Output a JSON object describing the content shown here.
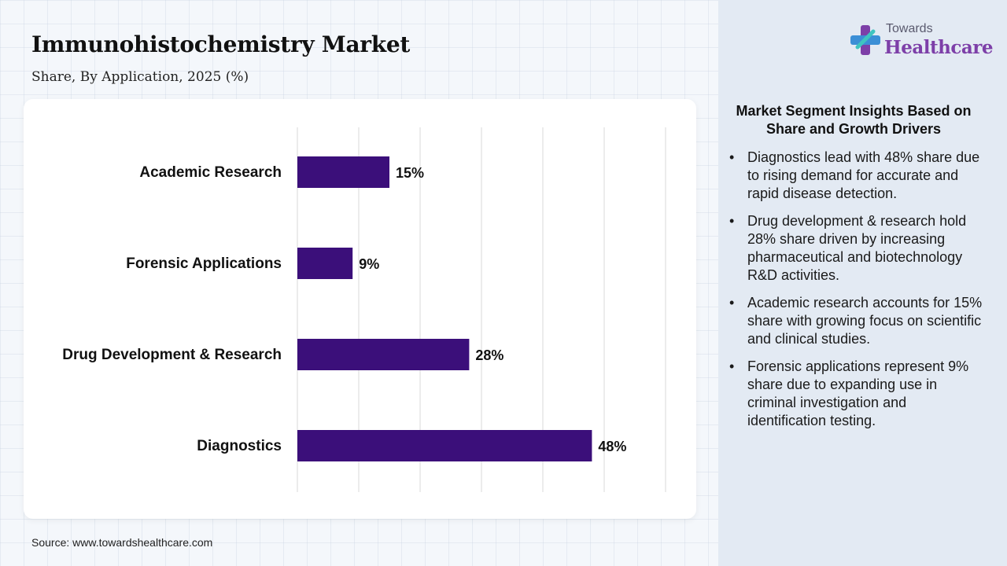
{
  "header": {
    "title": "Immunohistochemistry Market",
    "subtitle": "Share, By Application, 2025 (%)"
  },
  "brand": {
    "small": "Towards",
    "big": "Healthcare",
    "mark_icon": "cross-plus-icon",
    "colors": {
      "purple": "#7d3fa8",
      "blue": "#3b8fd6",
      "teal": "#3fc4c0"
    }
  },
  "chart_data": {
    "type": "bar",
    "orientation": "horizontal",
    "categories": [
      "Academic Research",
      "Forensic Applications",
      "Drug Development & Research",
      "Diagnostics"
    ],
    "values": [
      15,
      9,
      28,
      48
    ],
    "data_labels": [
      "15%",
      "9%",
      "28%",
      "48%"
    ],
    "xlim": [
      0,
      60
    ],
    "grid": true,
    "bar_color": "#3b0f7a"
  },
  "insights": {
    "title": "Market Segment Insights Based on Share and Growth Drivers",
    "items": [
      "Diagnostics lead with 48% share due to rising demand for accurate and rapid disease detection.",
      "Drug development & research hold 28% share driven by increasing pharmaceutical and biotechnology R&D activities.",
      "Academic research accounts for 15% share with growing focus on scientific and clinical studies.",
      "Forensic applications represent 9% share due to expanding use in criminal investigation and identification testing."
    ]
  },
  "footer": {
    "source": "Source: www.towardshealthcare.com"
  }
}
